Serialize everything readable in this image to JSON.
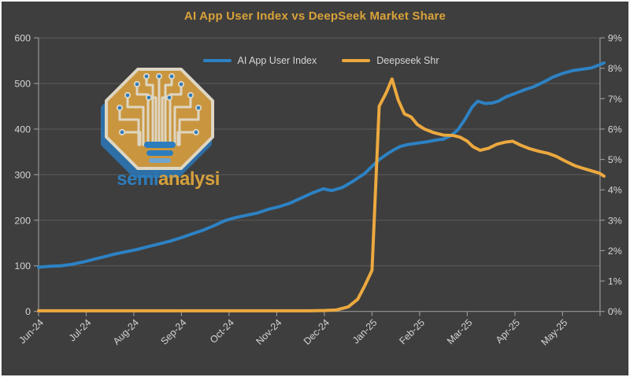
{
  "title": "AI App User Index vs DeepSeek Market Share",
  "colors": {
    "background": "#3e3e3e",
    "frame_border": "#f5f5f5",
    "title": "#d9a23a",
    "axis_text": "#d4d4d4",
    "gridline": "#5c5c5c",
    "axis_line": "#969696",
    "blue": "#2d82c4",
    "orange": "#eca93f",
    "logo_gold": "#c9963f",
    "logo_cream": "#ded6c3",
    "logo_blue": "#2d7cbd",
    "logo_shadow_blue": "#2d6fa6",
    "logo_text_gold": "#d5a03c"
  },
  "legend": {
    "items": [
      {
        "label": "AI App User Index",
        "color_key": "blue"
      },
      {
        "label": "Deepseek Shr",
        "color_key": "orange"
      }
    ]
  },
  "logo": {
    "semi": "semi",
    "analysis": "analysis"
  },
  "chart_data": {
    "type": "line",
    "title": "AI App User Index vs DeepSeek Market Share",
    "x_unit": "months since Jun-2024 (fractional x = weekly samples)",
    "x_tick_labels": [
      "Jun-24",
      "Jul-24",
      "Aug-24",
      "Sep-24",
      "Oct-24",
      "Nov-24",
      "Dec-24",
      "Jan-25",
      "Feb-25",
      "Mar-25",
      "Apr-25",
      "May-25"
    ],
    "grid": "horizontal only",
    "legend_position": "top center",
    "left_axis": {
      "min": 0,
      "max": 600,
      "tick_step": 100,
      "tick_labels": [
        "0",
        "100",
        "200",
        "300",
        "400",
        "500",
        "600"
      ]
    },
    "right_axis": {
      "min": 0,
      "max": 9,
      "tick_step": 1,
      "tick_labels": [
        "0%",
        "1%",
        "2%",
        "3%",
        "4%",
        "5%",
        "6%",
        "7%",
        "8%",
        "9%"
      ]
    },
    "series": [
      {
        "name": "AI App User Index",
        "axis": "left",
        "color": "#2d82c4",
        "points": [
          [
            0,
            97
          ],
          [
            0.23,
            99
          ],
          [
            0.46,
            100
          ],
          [
            0.69,
            103
          ],
          [
            0.92,
            108
          ],
          [
            1.15,
            114
          ],
          [
            1.38,
            120
          ],
          [
            1.61,
            126
          ],
          [
            1.84,
            131
          ],
          [
            2.07,
            136
          ],
          [
            2.3,
            142
          ],
          [
            2.53,
            148
          ],
          [
            2.76,
            154
          ],
          [
            3,
            162
          ],
          [
            3.22,
            170
          ],
          [
            3.45,
            178
          ],
          [
            3.68,
            188
          ],
          [
            3.91,
            199
          ],
          [
            4.14,
            206
          ],
          [
            4.37,
            211
          ],
          [
            4.6,
            216
          ],
          [
            4.83,
            224
          ],
          [
            5.06,
            230
          ],
          [
            5.29,
            238
          ],
          [
            5.52,
            249
          ],
          [
            5.75,
            260
          ],
          [
            5.98,
            269
          ],
          [
            6.15,
            265
          ],
          [
            6.38,
            272
          ],
          [
            6.61,
            286
          ],
          [
            6.84,
            302
          ],
          [
            7,
            318
          ],
          [
            7.15,
            333
          ],
          [
            7.3,
            344
          ],
          [
            7.45,
            354
          ],
          [
            7.6,
            362
          ],
          [
            7.75,
            366
          ],
          [
            7.95,
            369
          ],
          [
            8.15,
            372
          ],
          [
            8.35,
            376
          ],
          [
            8.5,
            378
          ],
          [
            8.65,
            385
          ],
          [
            8.8,
            398
          ],
          [
            8.95,
            421
          ],
          [
            9.1,
            448
          ],
          [
            9.22,
            461
          ],
          [
            9.38,
            456
          ],
          [
            9.52,
            457
          ],
          [
            9.65,
            461
          ],
          [
            9.82,
            471
          ],
          [
            10,
            478
          ],
          [
            10.2,
            486
          ],
          [
            10.4,
            493
          ],
          [
            10.6,
            503
          ],
          [
            10.8,
            514
          ],
          [
            11,
            522
          ],
          [
            11.2,
            528
          ],
          [
            11.4,
            531
          ],
          [
            11.6,
            534
          ],
          [
            11.75,
            540
          ],
          [
            11.87,
            545
          ]
        ]
      },
      {
        "name": "Deepseek Shr",
        "axis": "right",
        "color": "#eca93f",
        "points": [
          [
            0,
            0.02
          ],
          [
            0.3,
            0.02
          ],
          [
            0.6,
            0.02
          ],
          [
            0.9,
            0.02
          ],
          [
            1.2,
            0.02
          ],
          [
            1.5,
            0.02
          ],
          [
            1.8,
            0.02
          ],
          [
            2.1,
            0.02
          ],
          [
            2.4,
            0.02
          ],
          [
            2.7,
            0.02
          ],
          [
            3,
            0.02
          ],
          [
            3.3,
            0.02
          ],
          [
            3.6,
            0.02
          ],
          [
            3.9,
            0.02
          ],
          [
            4.2,
            0.02
          ],
          [
            4.5,
            0.02
          ],
          [
            4.8,
            0.02
          ],
          [
            5.1,
            0.02
          ],
          [
            5.4,
            0.02
          ],
          [
            5.7,
            0.02
          ],
          [
            6,
            0.03
          ],
          [
            6.25,
            0.05
          ],
          [
            6.5,
            0.15
          ],
          [
            6.7,
            0.4
          ],
          [
            6.85,
            0.85
          ],
          [
            7,
            1.35
          ],
          [
            7.15,
            6.75
          ],
          [
            7.3,
            7.2
          ],
          [
            7.42,
            7.65
          ],
          [
            7.55,
            6.95
          ],
          [
            7.68,
            6.5
          ],
          [
            7.82,
            6.4
          ],
          [
            7.95,
            6.15
          ],
          [
            8.1,
            6
          ],
          [
            8.3,
            5.88
          ],
          [
            8.5,
            5.8
          ],
          [
            8.7,
            5.79
          ],
          [
            8.85,
            5.73
          ],
          [
            9,
            5.6
          ],
          [
            9.12,
            5.42
          ],
          [
            9.27,
            5.3
          ],
          [
            9.45,
            5.37
          ],
          [
            9.62,
            5.5
          ],
          [
            9.8,
            5.57
          ],
          [
            9.95,
            5.6
          ],
          [
            10.12,
            5.47
          ],
          [
            10.3,
            5.36
          ],
          [
            10.5,
            5.27
          ],
          [
            10.7,
            5.2
          ],
          [
            10.87,
            5.1
          ],
          [
            11.05,
            4.95
          ],
          [
            11.25,
            4.8
          ],
          [
            11.45,
            4.7
          ],
          [
            11.62,
            4.62
          ],
          [
            11.77,
            4.55
          ],
          [
            11.87,
            4.45
          ]
        ]
      }
    ]
  }
}
